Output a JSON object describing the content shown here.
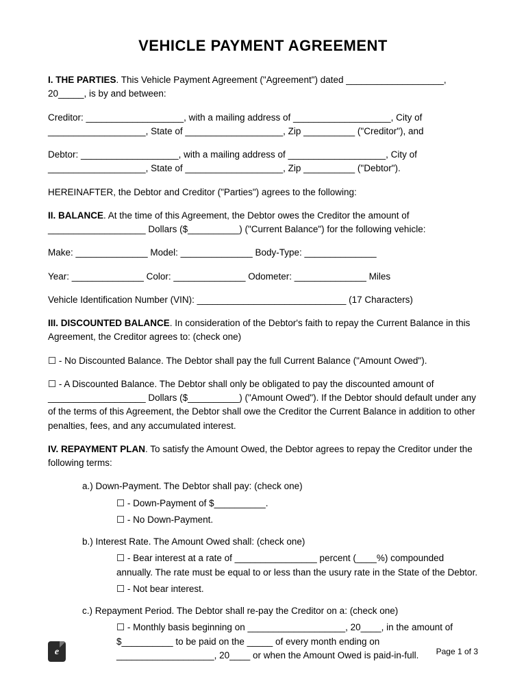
{
  "title": "VEHICLE PAYMENT AGREEMENT",
  "s1": {
    "head": "I. THE PARTIES",
    "intro": ". This Vehicle Payment Agreement (\"Agreement\") dated ___________________, 20_____, is by and between:",
    "creditor": "Creditor: ___________________, with a mailing address of ___________________, City of ___________________, State of ___________________, Zip __________ (\"Creditor\"), and",
    "debtor": "Debtor: ___________________, with a mailing address of ___________________, City of ___________________, State of ___________________, Zip __________ (\"Debtor\").",
    "hereinafter": "HEREINAFTER, the Debtor and Creditor (\"Parties\") agrees to the following:"
  },
  "s2": {
    "head": "II. BALANCE",
    "intro": ". At the time of this Agreement, the Debtor owes the Creditor the amount of ___________________ Dollars ($__________) (\"Current Balance\") for the following vehicle:",
    "make": "Make: ______________ Model: ______________ Body-Type: ______________",
    "year": "Year: ______________ Color: ______________ Odometer: ______________ Miles",
    "vin": "Vehicle Identification Number (VIN): _____________________________ (17 Characters)"
  },
  "s3": {
    "head": "III. DISCOUNTED BALANCE",
    "intro": ". In consideration of the Debtor's faith to repay the Current Balance in this Agreement, the Creditor agrees to: (check one)",
    "opt1": "☐ - No Discounted Balance. The Debtor shall pay the full Current Balance (\"Amount Owed\").",
    "opt2": "☐ - A Discounted Balance. The Debtor shall only be obligated to pay the discounted amount of ___________________ Dollars ($__________) (\"Amount Owed\"). If the Debtor should default under any of the terms of this Agreement, the Debtor shall owe the Creditor the Current Balance in addition to other penalties, fees, and any accumulated interest."
  },
  "s4": {
    "head": "IV. REPAYMENT PLAN",
    "intro": ". To satisfy the Amount Owed, the Debtor agrees to repay the Creditor under the following terms:",
    "a": {
      "label": "a.)  Down-Payment. The Debtor shall pay: (check one)",
      "o1": "☐ - Down-Payment of $__________.",
      "o2": "☐ - No Down-Payment."
    },
    "b": {
      "label": "b.)  Interest Rate. The Amount Owed shall: (check one)",
      "o1": "☐ - Bear interest at a rate of ________________ percent (____%) compounded annually. The rate must be equal to or less than the usury rate in the State of the Debtor.",
      "o2": "☐ - Not bear interest."
    },
    "c": {
      "label": "c.)  Repayment Period. The Debtor shall re-pay the Creditor on a: (check one)",
      "o1": "☐ - Monthly basis beginning on ___________________, 20____, in the amount of $__________ to be paid on the _____ of every month ending on ___________________, 20____ or when the Amount Owed is paid-in-full."
    }
  },
  "footer": {
    "page": "Page 1 of 3",
    "logo_letter": "e"
  }
}
